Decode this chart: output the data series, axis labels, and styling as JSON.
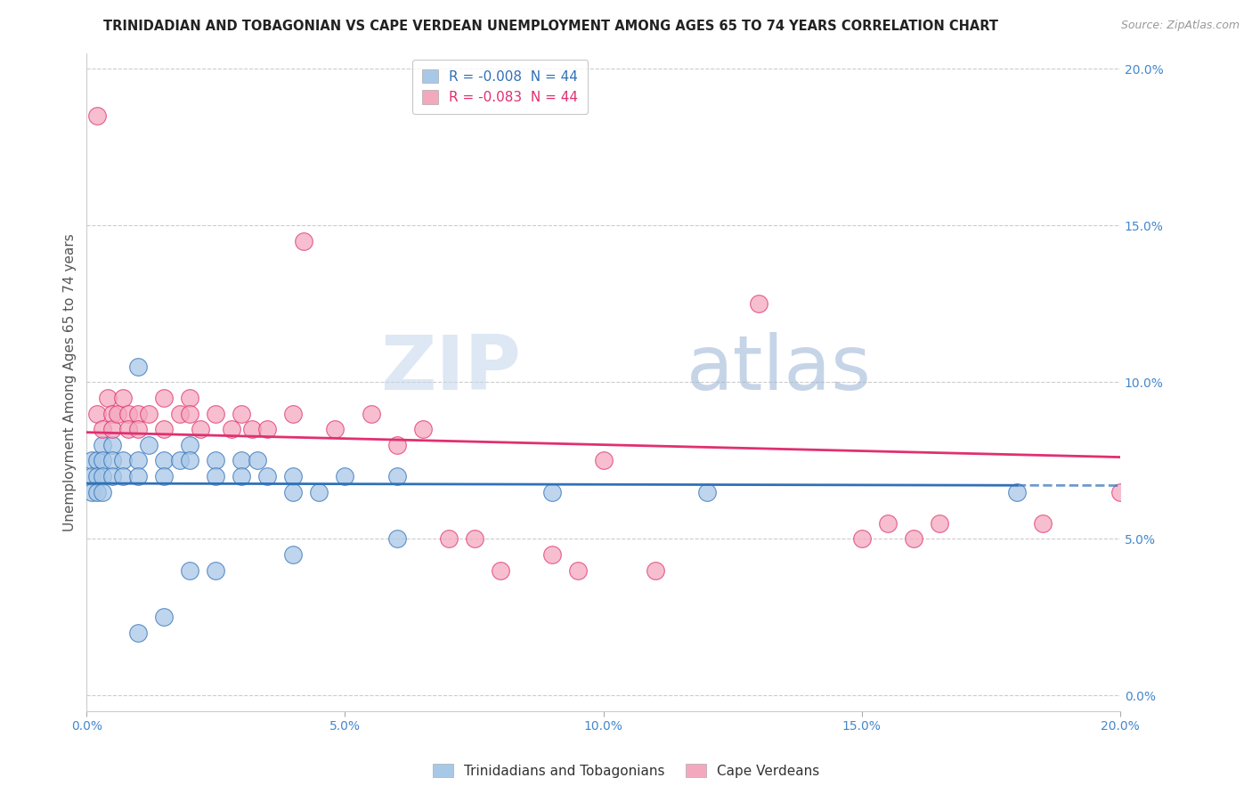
{
  "title": "TRINIDADIAN AND TOBAGONIAN VS CAPE VERDEAN UNEMPLOYMENT AMONG AGES 65 TO 74 YEARS CORRELATION CHART",
  "source": "Source: ZipAtlas.com",
  "ylabel": "Unemployment Among Ages 65 to 74 years",
  "legend_label_1": "Trinidadians and Tobagonians",
  "legend_label_2": "Cape Verdeans",
  "R1": -0.008,
  "N1": 44,
  "R2": -0.083,
  "N2": 44,
  "color_blue": "#a8c8e8",
  "color_pink": "#f4a8be",
  "color_blue_line": "#3070b8",
  "color_pink_line": "#e03070",
  "xlim": [
    0.0,
    0.2
  ],
  "ylim": [
    -0.005,
    0.205
  ],
  "xticks": [
    0.0,
    0.05,
    0.1,
    0.15,
    0.2
  ],
  "yticks": [
    0.0,
    0.05,
    0.1,
    0.15,
    0.2
  ],
  "xticklabels": [
    "0.0%",
    "5.0%",
    "10.0%",
    "15.0%",
    "20.0%"
  ],
  "yticklabels": [
    "0.0%",
    "5.0%",
    "10.0%",
    "15.0%",
    "20.0%"
  ],
  "blue_points": [
    [
      0.001,
      0.075
    ],
    [
      0.001,
      0.07
    ],
    [
      0.001,
      0.065
    ],
    [
      0.002,
      0.075
    ],
    [
      0.002,
      0.07
    ],
    [
      0.002,
      0.065
    ],
    [
      0.003,
      0.08
    ],
    [
      0.003,
      0.075
    ],
    [
      0.003,
      0.07
    ],
    [
      0.003,
      0.065
    ],
    [
      0.005,
      0.08
    ],
    [
      0.005,
      0.075
    ],
    [
      0.005,
      0.07
    ],
    [
      0.007,
      0.075
    ],
    [
      0.007,
      0.07
    ],
    [
      0.01,
      0.105
    ],
    [
      0.01,
      0.075
    ],
    [
      0.01,
      0.07
    ],
    [
      0.012,
      0.08
    ],
    [
      0.015,
      0.075
    ],
    [
      0.015,
      0.07
    ],
    [
      0.018,
      0.075
    ],
    [
      0.02,
      0.08
    ],
    [
      0.02,
      0.075
    ],
    [
      0.025,
      0.075
    ],
    [
      0.025,
      0.07
    ],
    [
      0.03,
      0.075
    ],
    [
      0.03,
      0.07
    ],
    [
      0.033,
      0.075
    ],
    [
      0.035,
      0.07
    ],
    [
      0.04,
      0.07
    ],
    [
      0.04,
      0.065
    ],
    [
      0.045,
      0.065
    ],
    [
      0.05,
      0.07
    ],
    [
      0.06,
      0.07
    ],
    [
      0.02,
      0.04
    ],
    [
      0.025,
      0.04
    ],
    [
      0.04,
      0.045
    ],
    [
      0.06,
      0.05
    ],
    [
      0.09,
      0.065
    ],
    [
      0.01,
      0.02
    ],
    [
      0.015,
      0.025
    ],
    [
      0.12,
      0.065
    ],
    [
      0.18,
      0.065
    ]
  ],
  "pink_points": [
    [
      0.002,
      0.185
    ],
    [
      0.002,
      0.09
    ],
    [
      0.003,
      0.085
    ],
    [
      0.004,
      0.095
    ],
    [
      0.005,
      0.09
    ],
    [
      0.005,
      0.085
    ],
    [
      0.006,
      0.09
    ],
    [
      0.007,
      0.095
    ],
    [
      0.008,
      0.09
    ],
    [
      0.008,
      0.085
    ],
    [
      0.01,
      0.09
    ],
    [
      0.01,
      0.085
    ],
    [
      0.012,
      0.09
    ],
    [
      0.015,
      0.095
    ],
    [
      0.015,
      0.085
    ],
    [
      0.018,
      0.09
    ],
    [
      0.02,
      0.095
    ],
    [
      0.02,
      0.09
    ],
    [
      0.022,
      0.085
    ],
    [
      0.025,
      0.09
    ],
    [
      0.028,
      0.085
    ],
    [
      0.03,
      0.09
    ],
    [
      0.032,
      0.085
    ],
    [
      0.035,
      0.085
    ],
    [
      0.04,
      0.09
    ],
    [
      0.042,
      0.145
    ],
    [
      0.048,
      0.085
    ],
    [
      0.055,
      0.09
    ],
    [
      0.06,
      0.08
    ],
    [
      0.065,
      0.085
    ],
    [
      0.07,
      0.05
    ],
    [
      0.075,
      0.05
    ],
    [
      0.08,
      0.04
    ],
    [
      0.09,
      0.045
    ],
    [
      0.095,
      0.04
    ],
    [
      0.1,
      0.075
    ],
    [
      0.11,
      0.04
    ],
    [
      0.13,
      0.125
    ],
    [
      0.15,
      0.05
    ],
    [
      0.155,
      0.055
    ],
    [
      0.16,
      0.05
    ],
    [
      0.165,
      0.055
    ],
    [
      0.185,
      0.055
    ],
    [
      0.2,
      0.065
    ]
  ],
  "watermark_zip": "ZIP",
  "watermark_atlas": "atlas",
  "background_color": "#ffffff",
  "grid_color": "#cccccc",
  "title_fontsize": 10.5,
  "axis_fontsize": 11,
  "tick_fontsize": 10,
  "legend_fontsize": 11
}
